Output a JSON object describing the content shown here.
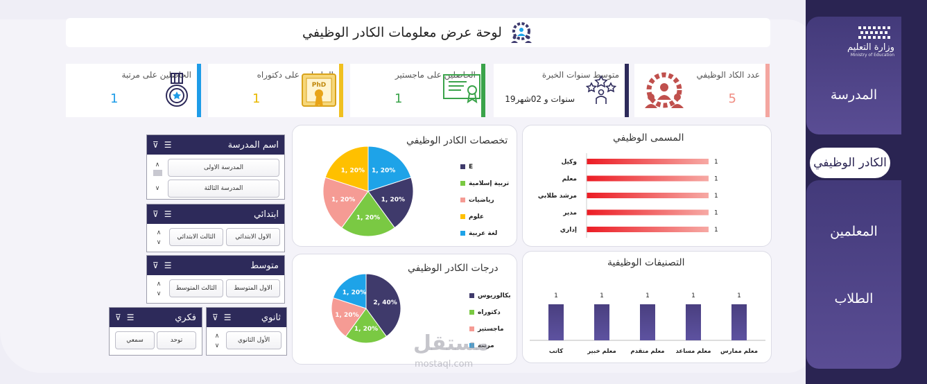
{
  "title": "لوحة عرض معلومات الكادر الوظيفي",
  "nav": {
    "school": "المدرسة",
    "staff": "الكادر الوظيفي",
    "teachers": "المعلمين",
    "students": "الطلاب"
  },
  "logo": {
    "ar": "وزارة التعليم",
    "en": "Ministry of Education"
  },
  "kpis": [
    {
      "label": "عدد الكاد الوظيفي",
      "value": "5",
      "color": "#f4a6a0"
    },
    {
      "label": "متوسط سنوات الخبرة",
      "value": "19سنوات و 02شهر",
      "color": "#2d2a5a"
    },
    {
      "label": "الحاصلين على ماجستير",
      "value": "1",
      "color": "#3aa34a"
    },
    {
      "label": "الحاصلين على دكتوراه",
      "value": "1",
      "color": "#f0c020"
    },
    {
      "label": "الحاصلين على مرتبة",
      "value": "1",
      "color": "#1e9ce8"
    }
  ],
  "slicers": {
    "school": {
      "title": "اسم المدرسة",
      "items": [
        "المدرسة الاولى",
        "المدرسة الثالثة"
      ]
    },
    "primary": {
      "title": "ابتدائي",
      "items": [
        "الاول الابتدائي",
        "الثالث الابتدائي"
      ]
    },
    "middle": {
      "title": "متوسط",
      "items": [
        "الاول المتوسط",
        "الثالث المتوسط"
      ]
    },
    "secondary": {
      "title": "ثانوي",
      "items": [
        "الأول الثانوي"
      ]
    },
    "intellectual": {
      "title": "فكري",
      "items": [
        "توحد",
        "سمعي"
      ]
    }
  },
  "watermark": {
    "main": "مستقل",
    "sub": "mostaql.com"
  },
  "chart_data": [
    {
      "type": "bar",
      "orientation": "horizontal",
      "title": "المسمى الوظيفي",
      "categories": [
        "وكيل",
        "معلم",
        "مرشد طلابي",
        "مدير",
        "إداري"
      ],
      "values": [
        1,
        1,
        1,
        1,
        1
      ],
      "color": "#e8242a"
    },
    {
      "type": "pie",
      "title": "تخصصات الكادر الوظيفي",
      "categories": [
        "E",
        "تربية إسلامية",
        "رياضيات",
        "علوم",
        "لغة عربية"
      ],
      "values": [
        1,
        1,
        1,
        1,
        1
      ],
      "labels": [
        "1, 20%",
        "1, 20%",
        "1, 20%",
        "1, 20%",
        "1, 20%"
      ],
      "colors": [
        "#3f3a6b",
        "#7ac943",
        "#f59b94",
        "#ffc000",
        "#1ea3e8"
      ]
    },
    {
      "type": "bar",
      "title": "التصنيفات الوظيفية",
      "categories": [
        "معلم ممارس",
        "معلم مساعد",
        "معلم متقدم",
        "معلم خبير",
        "كاتب"
      ],
      "values": [
        1,
        1,
        1,
        1,
        1
      ],
      "color": "#4a3f80"
    },
    {
      "type": "pie",
      "title": "درجات الكادر الوظيفي",
      "categories": [
        "بكالوريوس",
        "دكتوراه",
        "ماجستير",
        "مرتبة"
      ],
      "values": [
        2,
        1,
        1,
        1
      ],
      "labels": [
        "2, 40%",
        "1, 20%",
        "1, 20%",
        "1, 20%"
      ],
      "colors": [
        "#3f3a6b",
        "#7ac943",
        "#f59b94",
        "#1ea3e8"
      ]
    }
  ]
}
